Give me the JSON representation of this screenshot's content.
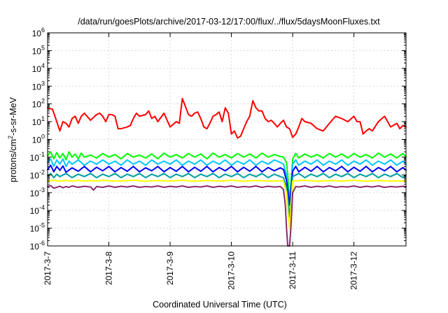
{
  "chart_data": {
    "type": "line",
    "title": "/data/run/goesPlots/archive/2017-03-12/17:00/flux/../flux/5daysMoonFluxes.txt",
    "xlabel": "Coordinated Universal Time (UTC)",
    "ylabel": {
      "prefix": "protons/cm",
      "sup": "2",
      "suffix": "-s-sr-MeV"
    },
    "xlim": [
      0,
      5.85
    ],
    "x_units": "days from 2017-3-7 00:00 UTC",
    "ylim": [
      1e-06,
      1000000.0
    ],
    "yscale": "log",
    "grid": true,
    "legend": "none",
    "xticks": [
      {
        "x": 0,
        "label": "2017-3-7"
      },
      {
        "x": 1,
        "label": "2017-3-8"
      },
      {
        "x": 2,
        "label": "2017-3-9"
      },
      {
        "x": 3,
        "label": "2017-3-10"
      },
      {
        "x": 4,
        "label": "2017-3-11"
      },
      {
        "x": 5,
        "label": "2017-3-12"
      }
    ],
    "yticks": [
      {
        "v": 1e-06,
        "base": "10",
        "exp": "-6"
      },
      {
        "v": 1e-05,
        "base": "10",
        "exp": "-5"
      },
      {
        "v": 0.0001,
        "base": "10",
        "exp": "-4"
      },
      {
        "v": 0.001,
        "base": "10",
        "exp": "-3"
      },
      {
        "v": 0.01,
        "base": "10",
        "exp": "-2"
      },
      {
        "v": 0.1,
        "base": "10",
        "exp": "-1"
      },
      {
        "v": 1.0,
        "base": "10",
        "exp": "0"
      },
      {
        "v": 10.0,
        "base": "10",
        "exp": "1"
      },
      {
        "v": 100.0,
        "base": "10",
        "exp": "2"
      },
      {
        "v": 1000.0,
        "base": "10",
        "exp": "3"
      },
      {
        "v": 10000.0,
        "base": "10",
        "exp": "4"
      },
      {
        "v": 100000.0,
        "base": "10",
        "exp": "5"
      },
      {
        "v": 1000000.0,
        "base": "10",
        "exp": "6"
      }
    ],
    "series": [
      {
        "color": "#ff0000",
        "x": [
          0.0,
          0.08,
          0.15,
          0.2,
          0.25,
          0.3,
          0.35,
          0.4,
          0.45,
          0.5,
          0.55,
          0.6,
          0.7,
          0.8,
          0.85,
          0.9,
          0.95,
          1.0,
          1.05,
          1.1,
          1.15,
          1.2,
          1.3,
          1.35,
          1.4,
          1.45,
          1.5,
          1.6,
          1.65,
          1.7,
          1.75,
          1.8,
          1.9,
          2.0,
          2.1,
          2.15,
          2.2,
          2.3,
          2.35,
          2.4,
          2.45,
          2.5,
          2.55,
          2.6,
          2.65,
          2.7,
          2.75,
          2.8,
          2.85,
          2.9,
          2.95,
          3.0,
          3.05,
          3.1,
          3.15,
          3.2,
          3.25,
          3.3,
          3.35,
          3.4,
          3.45,
          3.5,
          3.55,
          3.6,
          3.65,
          3.7,
          3.75,
          3.8,
          3.85,
          3.9,
          3.95,
          4.0,
          4.05,
          4.1,
          4.15,
          4.2,
          4.3,
          4.4,
          4.5,
          4.6,
          4.7,
          4.8,
          4.9,
          5.0,
          5.05,
          5.1,
          5.15,
          5.2,
          5.25,
          5.3,
          5.4,
          5.5,
          5.6,
          5.7,
          5.75,
          5.8,
          5.85
        ],
        "y": [
          60,
          50,
          10,
          3,
          10,
          8,
          5,
          15,
          20,
          8,
          20,
          30,
          12,
          25,
          30,
          20,
          10,
          25,
          25,
          20,
          4,
          4,
          5,
          6,
          15,
          30,
          20,
          25,
          40,
          15,
          20,
          10,
          30,
          5,
          10,
          8,
          200,
          25,
          20,
          30,
          35,
          15,
          5,
          4,
          8,
          20,
          25,
          35,
          10,
          60,
          30,
          2,
          3,
          1.2,
          1.5,
          4,
          10,
          20,
          150,
          60,
          40,
          40,
          15,
          10,
          12,
          8,
          5,
          8,
          12,
          5,
          4,
          1.3,
          2,
          5,
          15,
          10,
          8,
          4,
          3,
          8,
          20,
          15,
          10,
          20,
          10,
          10,
          2,
          3,
          4,
          3,
          10,
          20,
          5,
          8,
          4,
          6,
          5
        ]
      },
      {
        "color": "#00ff00",
        "x": [
          0.0,
          0.05,
          0.1,
          0.15,
          0.2,
          0.25,
          0.3,
          0.35,
          0.4,
          0.45,
          0.5,
          0.55,
          0.6,
          0.7,
          0.8,
          0.9,
          1.0,
          1.1,
          1.2,
          1.3,
          1.4,
          1.5,
          1.6,
          1.7,
          1.8,
          1.9,
          2.0,
          2.1,
          2.2,
          2.3,
          2.4,
          2.5,
          2.6,
          2.7,
          2.8,
          2.9,
          3.0,
          3.1,
          3.2,
          3.3,
          3.4,
          3.5,
          3.6,
          3.7,
          3.8,
          3.85,
          3.9,
          3.92,
          3.95,
          4.0,
          4.05,
          4.1,
          4.2,
          4.3,
          4.4,
          4.5,
          4.6,
          4.7,
          4.8,
          4.9,
          5.0,
          5.1,
          5.2,
          5.3,
          5.4,
          5.5,
          5.6,
          5.7,
          5.8,
          5.85
        ],
        "y": [
          0.12,
          0.2,
          0.08,
          0.18,
          0.09,
          0.16,
          0.07,
          0.2,
          0.1,
          0.15,
          0.08,
          0.17,
          0.1,
          0.13,
          0.09,
          0.16,
          0.1,
          0.14,
          0.08,
          0.16,
          0.1,
          0.13,
          0.09,
          0.15,
          0.08,
          0.17,
          0.1,
          0.14,
          0.09,
          0.16,
          0.1,
          0.15,
          0.08,
          0.17,
          0.1,
          0.14,
          0.09,
          0.16,
          0.1,
          0.15,
          0.09,
          0.17,
          0.1,
          0.14,
          0.11,
          0.1,
          0.05,
          0.01,
          0.0003,
          0.08,
          0.16,
          0.09,
          0.15,
          0.1,
          0.14,
          0.09,
          0.16,
          0.1,
          0.15,
          0.09,
          0.16,
          0.1,
          0.14,
          0.09,
          0.17,
          0.1,
          0.15,
          0.09,
          0.16,
          0.1
        ]
      },
      {
        "color": "#00c8ff",
        "x": [
          0.0,
          0.05,
          0.1,
          0.15,
          0.2,
          0.25,
          0.3,
          0.35,
          0.4,
          0.5,
          0.6,
          0.7,
          0.8,
          0.9,
          1.0,
          1.1,
          1.2,
          1.3,
          1.4,
          1.5,
          1.6,
          1.7,
          1.8,
          1.9,
          2.0,
          2.1,
          2.2,
          2.3,
          2.4,
          2.5,
          2.6,
          2.7,
          2.8,
          2.9,
          3.0,
          3.1,
          3.2,
          3.3,
          3.4,
          3.5,
          3.6,
          3.7,
          3.8,
          3.85,
          3.9,
          3.92,
          3.95,
          4.0,
          4.05,
          4.1,
          4.2,
          4.3,
          4.4,
          4.5,
          4.6,
          4.7,
          4.8,
          4.9,
          5.0,
          5.1,
          5.2,
          5.3,
          5.4,
          5.5,
          5.6,
          5.7,
          5.8,
          5.85
        ],
        "y": [
          0.05,
          0.08,
          0.03,
          0.07,
          0.04,
          0.08,
          0.03,
          0.06,
          0.04,
          0.07,
          0.035,
          0.06,
          0.04,
          0.07,
          0.04,
          0.06,
          0.035,
          0.07,
          0.04,
          0.06,
          0.035,
          0.07,
          0.04,
          0.06,
          0.04,
          0.07,
          0.035,
          0.06,
          0.04,
          0.07,
          0.035,
          0.06,
          0.04,
          0.07,
          0.035,
          0.06,
          0.04,
          0.07,
          0.035,
          0.06,
          0.04,
          0.07,
          0.05,
          0.04,
          0.01,
          0.002,
          0.0002,
          0.04,
          0.07,
          0.035,
          0.06,
          0.04,
          0.07,
          0.035,
          0.06,
          0.04,
          0.07,
          0.035,
          0.06,
          0.04,
          0.07,
          0.035,
          0.06,
          0.04,
          0.07,
          0.035,
          0.06,
          0.04
        ]
      },
      {
        "color": "#0000ff",
        "x": [
          0.0,
          0.05,
          0.1,
          0.15,
          0.2,
          0.25,
          0.3,
          0.4,
          0.5,
          0.6,
          0.7,
          0.8,
          0.9,
          1.0,
          1.1,
          1.2,
          1.3,
          1.4,
          1.5,
          1.6,
          1.7,
          1.8,
          1.9,
          2.0,
          2.1,
          2.2,
          2.3,
          2.4,
          2.5,
          2.6,
          2.7,
          2.8,
          2.9,
          3.0,
          3.1,
          3.2,
          3.3,
          3.4,
          3.5,
          3.6,
          3.7,
          3.8,
          3.85,
          3.9,
          3.92,
          3.95,
          4.0,
          4.05,
          4.1,
          4.2,
          4.3,
          4.4,
          4.5,
          4.6,
          4.7,
          4.8,
          4.9,
          5.0,
          5.1,
          5.2,
          5.3,
          5.4,
          5.5,
          5.6,
          5.7,
          5.8,
          5.85
        ],
        "y": [
          0.02,
          0.035,
          0.015,
          0.03,
          0.018,
          0.032,
          0.014,
          0.025,
          0.016,
          0.03,
          0.015,
          0.027,
          0.017,
          0.03,
          0.015,
          0.026,
          0.016,
          0.03,
          0.015,
          0.025,
          0.017,
          0.03,
          0.015,
          0.026,
          0.016,
          0.03,
          0.015,
          0.027,
          0.016,
          0.03,
          0.015,
          0.026,
          0.017,
          0.03,
          0.015,
          0.027,
          0.016,
          0.03,
          0.015,
          0.026,
          0.017,
          0.025,
          0.02,
          0.005,
          0.0015,
          0.0002,
          0.016,
          0.03,
          0.015,
          0.027,
          0.016,
          0.03,
          0.015,
          0.026,
          0.017,
          0.03,
          0.015,
          0.027,
          0.016,
          0.03,
          0.015,
          0.026,
          0.017,
          0.03,
          0.015,
          0.026,
          0.018
        ]
      },
      {
        "color": "#00a0a0",
        "x": [
          0.0,
          0.05,
          0.1,
          0.15,
          0.2,
          0.3,
          0.4,
          0.5,
          0.6,
          0.7,
          0.8,
          0.9,
          1.0,
          1.1,
          1.2,
          1.3,
          1.4,
          1.5,
          1.6,
          1.7,
          1.8,
          1.9,
          2.0,
          2.1,
          2.2,
          2.3,
          2.4,
          2.5,
          2.6,
          2.7,
          2.8,
          2.9,
          3.0,
          3.1,
          3.2,
          3.3,
          3.4,
          3.5,
          3.6,
          3.7,
          3.8,
          3.85,
          3.9,
          3.92,
          3.95,
          4.0,
          4.1,
          4.2,
          4.3,
          4.4,
          4.5,
          4.6,
          4.7,
          4.8,
          4.9,
          5.0,
          5.1,
          5.2,
          5.3,
          5.4,
          5.5,
          5.6,
          5.7,
          5.8,
          5.85
        ],
        "y": [
          0.009,
          0.012,
          0.007,
          0.011,
          0.008,
          0.012,
          0.007,
          0.011,
          0.008,
          0.012,
          0.007,
          0.011,
          0.008,
          0.012,
          0.007,
          0.011,
          0.008,
          0.012,
          0.007,
          0.011,
          0.008,
          0.012,
          0.007,
          0.011,
          0.008,
          0.012,
          0.007,
          0.011,
          0.008,
          0.012,
          0.007,
          0.011,
          0.008,
          0.012,
          0.007,
          0.011,
          0.008,
          0.012,
          0.007,
          0.011,
          0.008,
          0.007,
          0.002,
          0.0005,
          4e-05,
          0.008,
          0.012,
          0.007,
          0.011,
          0.008,
          0.012,
          0.007,
          0.011,
          0.008,
          0.012,
          0.007,
          0.011,
          0.008,
          0.012,
          0.007,
          0.011,
          0.008,
          0.012,
          0.007,
          0.01
        ]
      },
      {
        "color": "#ffff00",
        "x": [
          0.0,
          0.1,
          0.2,
          0.3,
          0.4,
          0.5,
          0.6,
          0.7,
          0.8,
          0.9,
          1.0,
          1.2,
          1.4,
          1.6,
          1.8,
          2.0,
          2.2,
          2.4,
          2.6,
          2.8,
          3.0,
          3.2,
          3.4,
          3.6,
          3.8,
          3.85,
          3.9,
          3.92,
          3.95,
          4.0,
          4.2,
          4.4,
          4.6,
          4.8,
          5.0,
          5.2,
          5.4,
          5.6,
          5.85
        ],
        "y": [
          0.0045,
          0.005,
          0.0044,
          0.0048,
          0.0045,
          0.005,
          0.0044,
          0.0048,
          0.0045,
          0.005,
          0.0046,
          0.0045,
          0.005,
          0.0044,
          0.0048,
          0.0045,
          0.005,
          0.0044,
          0.0048,
          0.0045,
          0.005,
          0.0044,
          0.0048,
          0.0045,
          0.0046,
          0.0044,
          0.001,
          0.0001,
          1e-05,
          0.0045,
          0.005,
          0.0044,
          0.0048,
          0.0045,
          0.005,
          0.0044,
          0.0048,
          0.0045,
          0.0046
        ]
      },
      {
        "color": "#8b2a6b",
        "x": [
          0.0,
          0.05,
          0.1,
          0.15,
          0.2,
          0.25,
          0.3,
          0.35,
          0.4,
          0.5,
          0.6,
          0.7,
          0.75,
          0.8,
          0.9,
          1.0,
          1.1,
          1.2,
          1.3,
          1.4,
          1.5,
          1.6,
          1.7,
          1.8,
          1.9,
          2.0,
          2.1,
          2.2,
          2.3,
          2.4,
          2.5,
          2.6,
          2.7,
          2.8,
          2.9,
          3.0,
          3.1,
          3.2,
          3.3,
          3.4,
          3.5,
          3.6,
          3.7,
          3.8,
          3.85,
          3.88,
          3.9,
          3.92,
          3.95,
          3.97,
          4.0,
          4.05,
          4.1,
          4.2,
          4.3,
          4.4,
          4.5,
          4.6,
          4.7,
          4.8,
          4.9,
          5.0,
          5.1,
          5.2,
          5.3,
          5.4,
          5.5,
          5.6,
          5.7,
          5.8,
          5.85
        ],
        "y": [
          0.0022,
          0.0025,
          0.0018,
          0.002,
          0.0023,
          0.0019,
          0.0022,
          0.002,
          0.0024,
          0.002,
          0.0023,
          0.0021,
          0.0014,
          0.0022,
          0.002,
          0.0024,
          0.002,
          0.0023,
          0.0021,
          0.0024,
          0.002,
          0.0022,
          0.0021,
          0.0024,
          0.002,
          0.0023,
          0.0021,
          0.0024,
          0.002,
          0.0022,
          0.0021,
          0.0024,
          0.002,
          0.0023,
          0.0021,
          0.0024,
          0.002,
          0.0022,
          0.0021,
          0.0024,
          0.002,
          0.0023,
          0.0021,
          0.0022,
          0.0015,
          0.0002,
          1e-05,
          1e-06,
          1e-06,
          1e-05,
          0.001,
          0.0022,
          0.0021,
          0.0024,
          0.002,
          0.0023,
          0.0021,
          0.0024,
          0.002,
          0.0022,
          0.0021,
          0.0024,
          0.002,
          0.0023,
          0.0021,
          0.0024,
          0.002,
          0.0022,
          0.0021,
          0.0023,
          0.0022
        ]
      }
    ]
  }
}
